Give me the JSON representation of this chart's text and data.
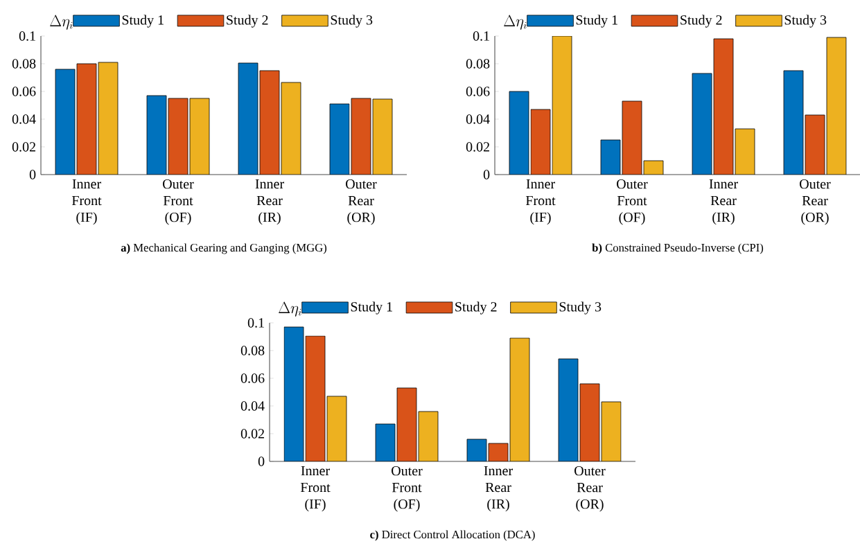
{
  "chart_data": [
    {
      "type": "bar",
      "title": "**a)** Mechanical Gearing and Ganging (MGG)",
      "ylabel": "\\Delta\\eta_i",
      "categories": [
        "Inner Front (IF)",
        "Outer Front (OF)",
        "Inner Rear (IR)",
        "Outer Rear (OR)"
      ],
      "series": [
        {
          "name": "Study 1",
          "color": "#0072bd",
          "values": [
            0.076,
            0.057,
            0.0805,
            0.051
          ]
        },
        {
          "name": "Study 2",
          "color": "#d95319",
          "values": [
            0.08,
            0.055,
            0.075,
            0.055
          ]
        },
        {
          "name": "Study 3",
          "color": "#edb120",
          "values": [
            0.081,
            0.055,
            0.0665,
            0.0545
          ]
        }
      ],
      "ylim": [
        0,
        0.1
      ],
      "yticks": [
        0,
        0.02,
        0.04,
        0.06,
        0.08,
        0.1
      ],
      "legend": "top",
      "grid": false
    },
    {
      "type": "bar",
      "title": "**b)** Constrained Pseudo-Inverse (CPI)",
      "ylabel": "\\Delta\\eta_i",
      "categories": [
        "Inner Front (IF)",
        "Outer Front (OF)",
        "Inner Rear (IR)",
        "Outer Rear (OR)"
      ],
      "series": [
        {
          "name": "Study 1",
          "color": "#0072bd",
          "values": [
            0.06,
            0.025,
            0.073,
            0.075
          ]
        },
        {
          "name": "Study 2",
          "color": "#d95319",
          "values": [
            0.047,
            0.053,
            0.098,
            0.043
          ]
        },
        {
          "name": "Study 3",
          "color": "#edb120",
          "values": [
            0.1,
            0.01,
            0.033,
            0.099
          ]
        }
      ],
      "ylim": [
        0,
        0.1
      ],
      "yticks": [
        0,
        0.02,
        0.04,
        0.06,
        0.08,
        0.1
      ],
      "legend": "top",
      "grid": false
    },
    {
      "type": "bar",
      "title": "**c)** Direct Control Allocation (DCA)",
      "ylabel": "\\Delta\\eta_i",
      "categories": [
        "Inner Front (IF)",
        "Outer Front (OF)",
        "Inner Rear (IR)",
        "Outer Rear (OR)"
      ],
      "series": [
        {
          "name": "Study 1",
          "color": "#0072bd",
          "values": [
            0.097,
            0.027,
            0.016,
            0.074
          ]
        },
        {
          "name": "Study 2",
          "color": "#d95319",
          "values": [
            0.0905,
            0.053,
            0.013,
            0.056
          ]
        },
        {
          "name": "Study 3",
          "color": "#edb120",
          "values": [
            0.047,
            0.036,
            0.089,
            0.043
          ]
        }
      ],
      "ylim": [
        0,
        0.1
      ],
      "yticks": [
        0,
        0.02,
        0.04,
        0.06,
        0.08,
        0.1
      ],
      "legend": "top",
      "grid": false
    }
  ]
}
